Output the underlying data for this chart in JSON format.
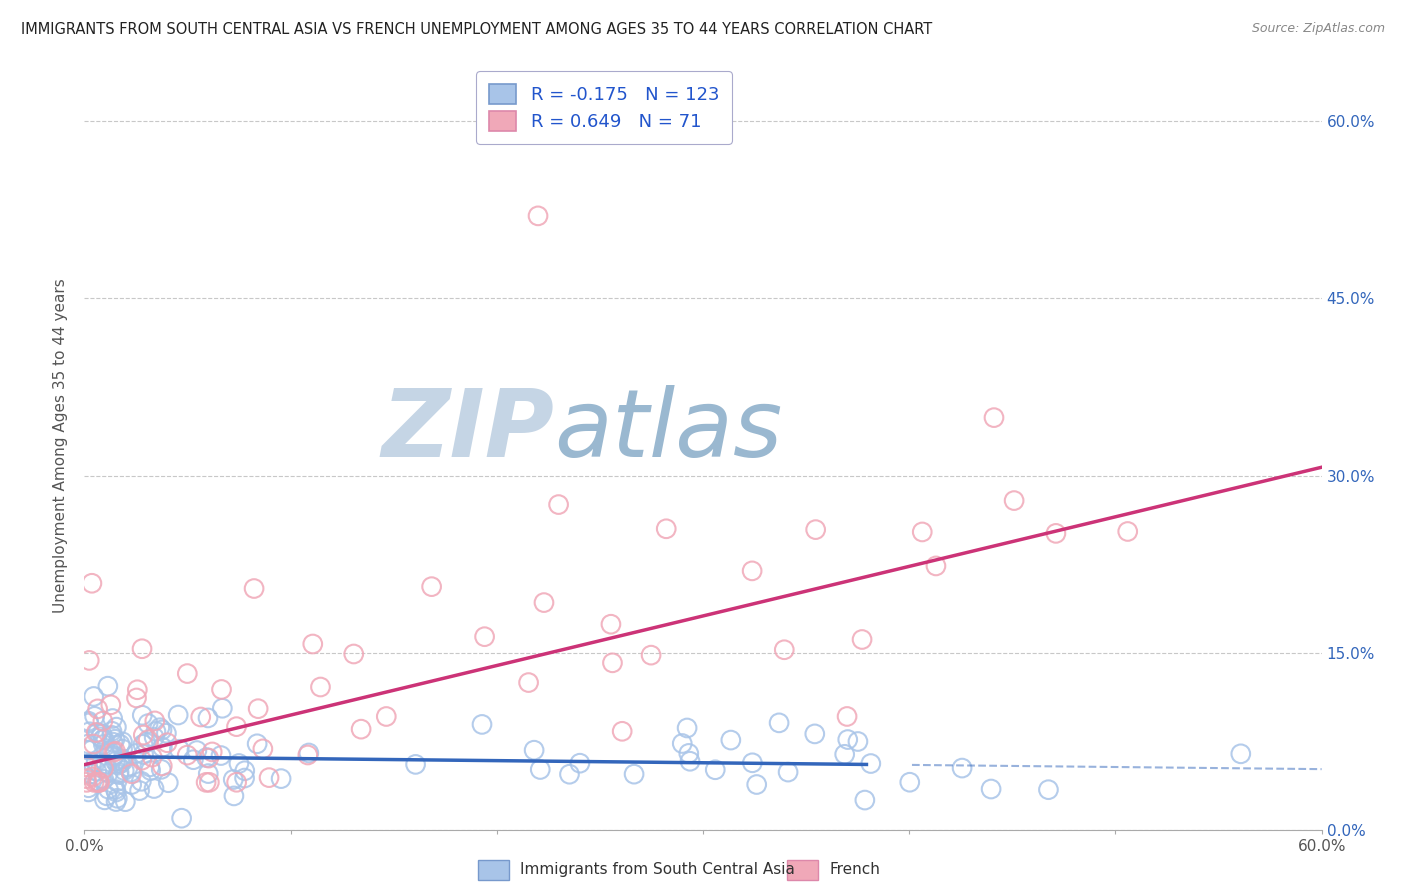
{
  "title": "IMMIGRANTS FROM SOUTH CENTRAL ASIA VS FRENCH UNEMPLOYMENT AMONG AGES 35 TO 44 YEARS CORRELATION CHART",
  "source": "Source: ZipAtlas.com",
  "ylabel": "Unemployment Among Ages 35 to 44 years",
  "legend_blue_label": "Immigrants from South Central Asia",
  "legend_pink_label": "French",
  "legend_R_blue": "-0.175",
  "legend_N_blue": "123",
  "legend_R_pink": "0.649",
  "legend_N_pink": "71",
  "scatter_blue_color": "#a8c4e8",
  "scatter_pink_color": "#f0a8b8",
  "line_blue_color": "#3366bb",
  "line_pink_color": "#cc3377",
  "grid_color": "#c8c8c8",
  "background_color": "#ffffff",
  "title_color": "#222222",
  "watermark_zip_color": "#c5d5e5",
  "watermark_atlas_color": "#9ab8d0",
  "xlim": [
    0.0,
    0.6
  ],
  "ylim": [
    0.0,
    0.65
  ],
  "yticks": [
    0.0,
    0.15,
    0.3,
    0.45,
    0.6
  ],
  "ytick_labels": [
    "0.0%",
    "15.0%",
    "30.0%",
    "45.0%",
    "60.0%"
  ],
  "slope_blue": -0.018,
  "intercept_blue": 0.062,
  "slope_pink": 0.42,
  "intercept_pink": 0.055,
  "blue_line_solid_end": 0.38,
  "blue_line_dashed_start": 0.4
}
